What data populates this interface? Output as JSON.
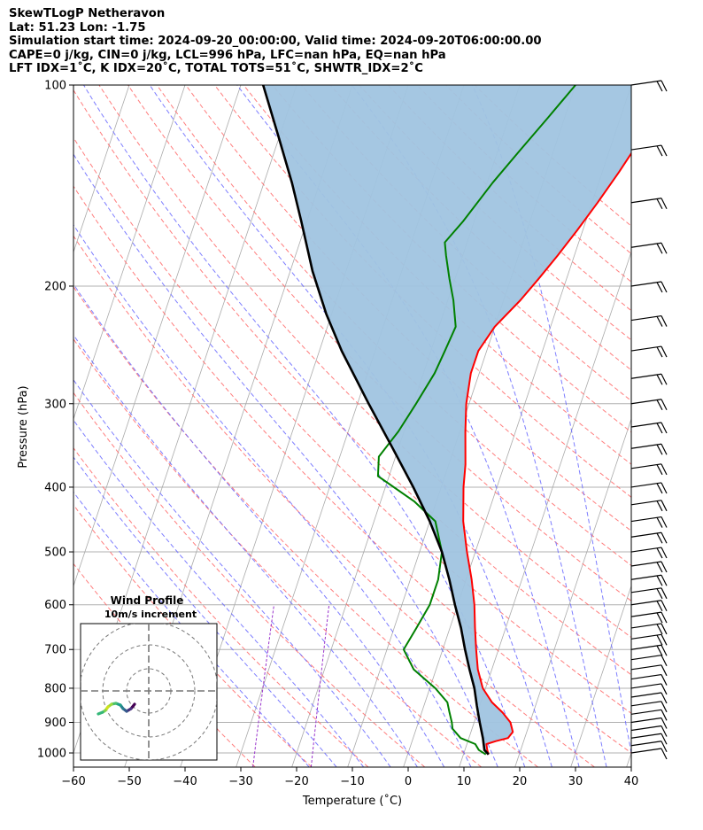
{
  "header": {
    "line1": "SkewTLogP Netheravon",
    "line2": "Lat: 51.23   Lon: -1.75",
    "line3": "Simulation start time: 2024-09-20_00:00:00, Valid time: 2024-09-20T06:00:00.00",
    "line4": "CAPE=0 j/kg, CIN=0 j/kg, LCL=996 hPa, LFC=nan hPa, EQ=nan hPa",
    "line5": "LFT IDX=1˚C, K IDX=20˚C, TOTAL TOTS=51˚C, SHWTR_IDX=2˚C"
  },
  "chart_data": {
    "type": "line",
    "subtype": "skew-t log-p",
    "xlabel": "Temperature (˚C)",
    "ylabel": "Pressure (hPa)",
    "xlim": [
      -60,
      40
    ],
    "ylim": [
      1050,
      100
    ],
    "y_scale": "log",
    "x_ticks": [
      -60,
      -50,
      -40,
      -30,
      -20,
      -10,
      0,
      10,
      20,
      30,
      40
    ],
    "x_tick_labels": [
      "−60",
      "−50",
      "−40",
      "−30",
      "−20",
      "−10",
      "0",
      "10",
      "20",
      "30",
      "40"
    ],
    "y_ticks": [
      1000,
      900,
      800,
      700,
      600,
      500,
      400,
      300,
      200,
      100
    ],
    "y_tick_labels": [
      "1000",
      "900",
      "800",
      "700",
      "600",
      "500",
      "400",
      "300",
      "200",
      "100"
    ],
    "grid": true,
    "colors": {
      "temperature": "#ff0000",
      "dewpoint": "#008000",
      "parcel": "#000000",
      "shade": "#a0c4e0",
      "dry_adiabat": "#ff6666",
      "moist_adiabat": "#6666ff",
      "mixing_ratio": "#9933cc",
      "isotherm": "#aaaaaa"
    },
    "series": [
      {
        "role": "temperature",
        "points": [
          [
            14.5,
            1005
          ],
          [
            14,
            990
          ],
          [
            13.5,
            970
          ],
          [
            15,
            960
          ],
          [
            17,
            950
          ],
          [
            17.5,
            930
          ],
          [
            16.5,
            900
          ],
          [
            14.5,
            870
          ],
          [
            12,
            840
          ],
          [
            9.5,
            800
          ],
          [
            7.5,
            750
          ],
          [
            6,
            700
          ],
          [
            4.5,
            650
          ],
          [
            3,
            600
          ],
          [
            1,
            550
          ],
          [
            -1.5,
            500
          ],
          [
            -4,
            450
          ],
          [
            -6,
            400
          ],
          [
            -7,
            370
          ],
          [
            -9,
            330
          ],
          [
            -10.5,
            300
          ],
          [
            -11.5,
            270
          ],
          [
            -11.5,
            250
          ],
          [
            -10,
            230
          ],
          [
            -7,
            210
          ],
          [
            -5,
            195
          ],
          [
            -3,
            180
          ],
          [
            -1,
            165
          ],
          [
            1,
            150
          ],
          [
            3,
            135
          ],
          [
            5,
            120
          ],
          [
            7,
            108
          ],
          [
            10,
            100
          ]
        ]
      },
      {
        "role": "dewpoint",
        "points": [
          [
            14,
            1005
          ],
          [
            12.5,
            990
          ],
          [
            11.5,
            970
          ],
          [
            8.5,
            950
          ],
          [
            6.5,
            920
          ],
          [
            6,
            900
          ],
          [
            5,
            870
          ],
          [
            4,
            840
          ],
          [
            1,
            800
          ],
          [
            -4,
            750
          ],
          [
            -7,
            700
          ],
          [
            -6,
            650
          ],
          [
            -5,
            600
          ],
          [
            -5,
            550
          ],
          [
            -6,
            500
          ],
          [
            -9,
            450
          ],
          [
            -14,
            420
          ],
          [
            -22,
            385
          ],
          [
            -23,
            360
          ],
          [
            -21,
            330
          ],
          [
            -19.5,
            300
          ],
          [
            -18,
            270
          ],
          [
            -17.5,
            250
          ],
          [
            -17,
            230
          ],
          [
            -19,
            210
          ],
          [
            -21,
            195
          ],
          [
            -23,
            180
          ],
          [
            -24,
            172
          ],
          [
            -22,
            160
          ],
          [
            -19,
            140
          ],
          [
            -16,
            125
          ],
          [
            -13,
            112
          ],
          [
            -10,
            100
          ]
        ]
      },
      {
        "role": "parcel",
        "points": [
          [
            14.5,
            1005
          ],
          [
            13.5,
            990
          ],
          [
            12.5,
            950
          ],
          [
            11,
            900
          ],
          [
            9.5,
            850
          ],
          [
            8,
            800
          ],
          [
            6,
            750
          ],
          [
            4,
            700
          ],
          [
            2,
            650
          ],
          [
            -0.5,
            600
          ],
          [
            -3,
            550
          ],
          [
            -6,
            500
          ],
          [
            -10,
            450
          ],
          [
            -15,
            400
          ],
          [
            -21,
            350
          ],
          [
            -28,
            300
          ],
          [
            -36,
            250
          ],
          [
            -41,
            220
          ],
          [
            -46,
            190
          ],
          [
            -51,
            160
          ],
          [
            -55,
            140
          ],
          [
            -60,
            120
          ],
          [
            -66,
            100
          ]
        ]
      }
    ],
    "wind_profile": {
      "title": "Wind Profile",
      "subtitle": "10m/s increment"
    }
  }
}
